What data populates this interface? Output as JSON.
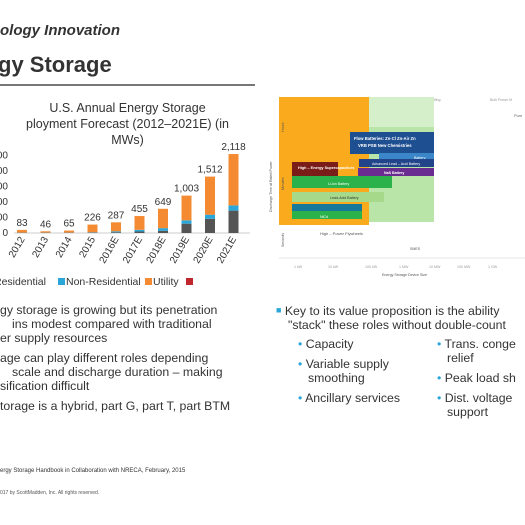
{
  "header": {
    "subtitle": "ology Innovation",
    "title": "gy Storage"
  },
  "chart_title_lines": [
    "U.S. Annual Energy Storage",
    "ployment Forecast (2012–2021E) (in",
    "MWs)"
  ],
  "chart_data": {
    "type": "bar",
    "title": "U.S. Annual Energy Storage Deployment Forecast (2012–2021E) (in MWs)",
    "categories": [
      "2012",
      "2013",
      "2014",
      "2015",
      "2016E",
      "2017E",
      "2018E",
      "2019E",
      "2020E",
      "2021E"
    ],
    "totals": [
      83,
      46,
      65,
      226,
      287,
      455,
      649,
      1003,
      1512,
      2118
    ],
    "total_labels": [
      "83",
      "46",
      "65",
      "226",
      "287",
      "455",
      "649",
      "1,003",
      "1,512",
      "2,118"
    ],
    "series": [
      {
        "name": "Non-Residential",
        "color": "#2aa7d8",
        "values": [
          5,
          5,
          5,
          10,
          25,
          45,
          70,
          90,
          110,
          140
        ]
      },
      {
        "name": "Utility",
        "color": "#f48b33",
        "values": [
          73,
          36,
          55,
          206,
          242,
          370,
          519,
          663,
          1022,
          1378
        ]
      },
      {
        "name": "",
        "color": "#c0272d",
        "values": [
          0,
          0,
          0,
          0,
          0,
          0,
          0,
          0,
          0,
          0
        ]
      },
      {
        "name": "Residential",
        "color": "#555555",
        "values": [
          5,
          5,
          5,
          10,
          20,
          40,
          60,
          250,
          380,
          600
        ]
      }
    ],
    "y_tick_labels": [
      "00",
      "00",
      "00",
      "00",
      "00",
      "0"
    ],
    "legend": [
      "Residential",
      "Non-Residential",
      "Utility"
    ],
    "ylim": [
      0,
      2500
    ],
    "legend_placement": "bottom",
    "grid": false
  },
  "left_bullets": [
    {
      "lines": [
        "gy storage is growing but its penetration",
        "ins modest compared with traditional",
        "er supply resources"
      ]
    },
    {
      "lines": [
        "age can play different roles depending",
        "scale and discharge duration – making",
        "sification difficult"
      ]
    },
    {
      "lines": [
        "torage is a hybrid, part G, part T, part BTM"
      ]
    }
  ],
  "right_main": {
    "bullet": "■",
    "lines": [
      "Key to its value proposition is the ability",
      "\"stack\" these roles without double-count"
    ]
  },
  "right_sub_left": [
    {
      "lines": [
        "Capacity"
      ]
    },
    {
      "lines": [
        "Variable supply",
        "smoothing"
      ]
    },
    {
      "lines": [
        "Ancillary services"
      ]
    }
  ],
  "right_sub_right": [
    {
      "lines": [
        "Trans. conge",
        "relief"
      ]
    },
    {
      "lines": [
        "Peak load sh"
      ]
    },
    {
      "lines": [
        "Dist. voltage",
        "support"
      ]
    }
  ],
  "diagram": {
    "top_labels": [
      "UPS Power Quality",
      "T&D Grid Support Load Shifting",
      "Bulk Power M"
    ],
    "top_right": "Pum",
    "y_axis_label": "Discharge Time at Rated Power",
    "y_ticks": [
      "Hours",
      "Minutes",
      "Seconds"
    ],
    "boxes": {
      "flow": "Flow Batteries: Zn-Cl  Zn-Air  Zn",
      "flow2": "VRB   PSB   New Chemistries",
      "battery": "Battery",
      "advanced": "Advanced Lead – Acid Battery",
      "supercap": "High – Energy Supercapacitors",
      "nas": "NaS Battery",
      "liion": "Li-ion Battery",
      "leadacid": "Lead-Acid Battery",
      "nicd": "NiCd",
      "flywheels": "High – Power Flywheels"
    },
    "smes": "SMES",
    "x_ticks": [
      "1 kW",
      "10 kW",
      "100 kW",
      "1 MW",
      "10 MW",
      "100 MW",
      "1 GW"
    ],
    "x_label": "Energy Storage Device Size"
  },
  "footer": {
    "source": "ergy Storage Handbook in Collaboration with NRECA, February, 2015",
    "copyright": "017 by ScottMadden, Inc. All rights reserved."
  }
}
